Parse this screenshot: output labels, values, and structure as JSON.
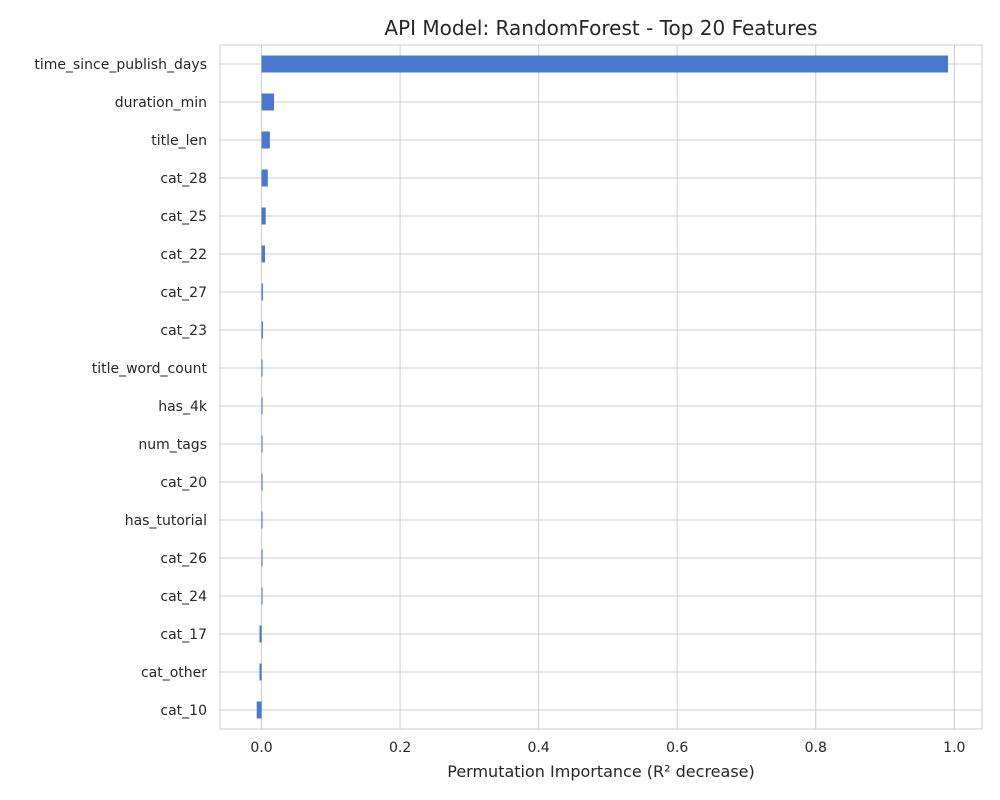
{
  "chart_data": {
    "type": "bar",
    "orientation": "horizontal",
    "title": "API Model: RandomForest - Top 20 Features",
    "xlabel": "Permutation Importance (R² decrease)",
    "ylabel": "",
    "xlim": [
      -0.06,
      1.04
    ],
    "xticks": [
      0.0,
      0.2,
      0.4,
      0.6,
      0.8,
      1.0
    ],
    "xtick_labels": [
      "0.0",
      "0.2",
      "0.4",
      "0.6",
      "0.8",
      "1.0"
    ],
    "grid": true,
    "bar_color": "#4878d0",
    "grid_color": "#cccccc",
    "categories": [
      "time_since_publish_days",
      "duration_min",
      "title_len",
      "cat_28",
      "cat_25",
      "cat_22",
      "cat_27",
      "cat_23",
      "title_word_count",
      "has_4k",
      "num_tags",
      "cat_20",
      "has_tutorial",
      "cat_26",
      "cat_24",
      "cat_17",
      "cat_other",
      "cat_10"
    ],
    "values": [
      0.991,
      0.018,
      0.012,
      0.009,
      0.006,
      0.005,
      0.002,
      0.002,
      0.001,
      0.0005,
      0.0005,
      0.0004,
      0.0003,
      0.0003,
      0.0002,
      -0.003,
      -0.003,
      -0.007
    ]
  }
}
